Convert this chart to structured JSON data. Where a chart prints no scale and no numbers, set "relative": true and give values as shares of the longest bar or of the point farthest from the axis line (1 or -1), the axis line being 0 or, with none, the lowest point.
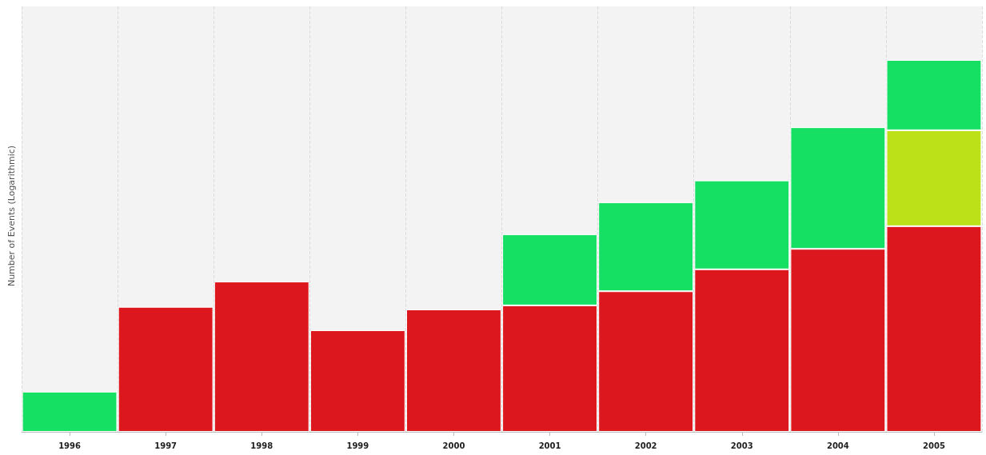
{
  "chart_data": {
    "type": "bar",
    "ylabel": "Number of Events (Logarithmic)",
    "categories": [
      "1996",
      "1997",
      "1998",
      "1999",
      "2000",
      "2001",
      "2002",
      "2003",
      "2004",
      "2005"
    ],
    "stacked": true,
    "relative": true,
    "grid": "x",
    "series": [
      {
        "color": "#dc171d",
        "values": [
          null,
          0.336,
          0.404,
          0.273,
          0.329,
          0.34,
          0.378,
          0.437,
          0.492,
          0.553
        ]
      },
      {
        "color": "#bce118",
        "values": [
          null,
          null,
          null,
          null,
          null,
          null,
          null,
          null,
          null,
          0.258
        ]
      },
      {
        "color": "#16e064",
        "values": [
          0.108,
          null,
          null,
          null,
          null,
          0.191,
          0.239,
          0.239,
          0.327,
          0.189
        ]
      }
    ]
  }
}
